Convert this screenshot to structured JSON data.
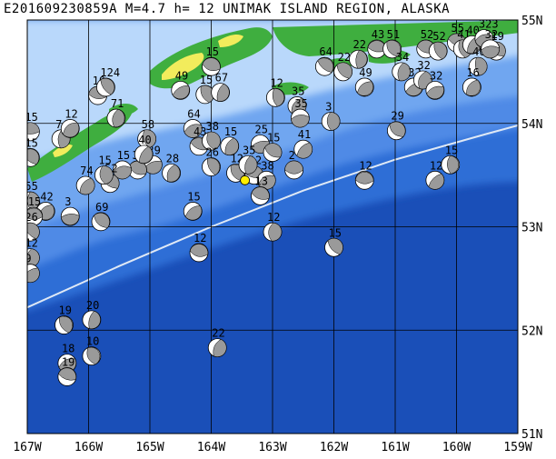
{
  "title": "E201609230859A  M=4.7  h= 12  UNIMAK ISLAND REGION, ALASKA",
  "lon_ticks": [
    {
      "value": -167,
      "label": "167W"
    },
    {
      "value": -166,
      "label": "166W"
    },
    {
      "value": -165,
      "label": "165W"
    },
    {
      "value": -164,
      "label": "164W"
    },
    {
      "value": -163,
      "label": "163W"
    },
    {
      "value": -162,
      "label": "162W"
    },
    {
      "value": -161,
      "label": "161W"
    },
    {
      "value": -160,
      "label": "160W"
    },
    {
      "value": -159,
      "label": "159W"
    }
  ],
  "lat_ticks": [
    {
      "value": 55,
      "label": "55N"
    },
    {
      "value": 54,
      "label": "54N"
    },
    {
      "value": 53,
      "label": "53N"
    },
    {
      "value": 52,
      "label": "52N"
    },
    {
      "value": 51,
      "label": "51N"
    }
  ],
  "colors": {
    "deep_ocean": "#1a4fb8",
    "ocean": "#2e6ed6",
    "shelf": "#6fa6f0",
    "shallow": "#b9d8fb",
    "land_low": "#3fae3f",
    "land_high": "#f2ec5c",
    "trench_line": "#dfe9f6",
    "epicenter": "#ffee00"
  },
  "epicenter": {
    "lon": -163.45,
    "lat": 53.45
  },
  "trench": [
    {
      "lon": -167.0,
      "lat": 52.22
    },
    {
      "lon": -165.5,
      "lat": 52.62
    },
    {
      "lon": -164.0,
      "lat": 53.0
    },
    {
      "lon": -162.5,
      "lat": 53.35
    },
    {
      "lon": -161.0,
      "lat": 53.65
    },
    {
      "lon": -159.5,
      "lat": 53.9
    },
    {
      "lon": -159.0,
      "lat": 53.98
    }
  ],
  "mechanisms": [
    {
      "lon": -166.95,
      "lat": 53.92,
      "label": "15"
    },
    {
      "lon": -166.95,
      "lat": 53.67,
      "label": "15"
    },
    {
      "lon": -166.45,
      "lat": 53.85,
      "label": "7"
    },
    {
      "lon": -166.3,
      "lat": 53.95,
      "label": "12"
    },
    {
      "lon": -165.85,
      "lat": 54.27,
      "label": "10"
    },
    {
      "lon": -165.72,
      "lat": 54.35,
      "label": "124"
    },
    {
      "lon": -165.55,
      "lat": 54.05,
      "label": "71"
    },
    {
      "lon": -164.5,
      "lat": 54.32,
      "label": "49"
    },
    {
      "lon": -164.0,
      "lat": 54.55,
      "label": "15"
    },
    {
      "lon": -164.1,
      "lat": 54.28,
      "label": "15"
    },
    {
      "lon": -163.85,
      "lat": 54.3,
      "label": "67"
    },
    {
      "lon": -164.3,
      "lat": 53.95,
      "label": "64"
    },
    {
      "lon": -164.2,
      "lat": 53.78,
      "label": "43"
    },
    {
      "lon": -164.0,
      "lat": 53.83,
      "label": "38"
    },
    {
      "lon": -163.7,
      "lat": 53.78,
      "label": "15"
    },
    {
      "lon": -163.2,
      "lat": 53.8,
      "label": "25"
    },
    {
      "lon": -163.0,
      "lat": 53.72,
      "label": "15"
    },
    {
      "lon": -162.95,
      "lat": 54.25,
      "label": "12"
    },
    {
      "lon": -162.6,
      "lat": 54.17,
      "label": "35"
    },
    {
      "lon": -162.55,
      "lat": 54.05,
      "label": "35"
    },
    {
      "lon": -162.15,
      "lat": 54.55,
      "label": "64"
    },
    {
      "lon": -162.05,
      "lat": 54.02,
      "label": "3"
    },
    {
      "lon": -162.5,
      "lat": 53.75,
      "label": "41"
    },
    {
      "lon": -162.65,
      "lat": 53.55,
      "label": "2"
    },
    {
      "lon": -161.85,
      "lat": 54.5,
      "label": "22"
    },
    {
      "lon": -161.6,
      "lat": 54.62,
      "label": "22"
    },
    {
      "lon": -161.5,
      "lat": 54.35,
      "label": "49"
    },
    {
      "lon": -161.3,
      "lat": 54.72,
      "label": "43"
    },
    {
      "lon": -161.05,
      "lat": 54.72,
      "label": "51"
    },
    {
      "lon": -160.9,
      "lat": 54.5,
      "label": "34"
    },
    {
      "lon": -160.7,
      "lat": 54.35,
      "label": "32"
    },
    {
      "lon": -160.5,
      "lat": 54.72,
      "label": "52"
    },
    {
      "lon": -160.3,
      "lat": 54.7,
      "label": "52"
    },
    {
      "lon": -160.55,
      "lat": 54.42,
      "label": "32"
    },
    {
      "lon": -160.35,
      "lat": 54.32,
      "label": "32"
    },
    {
      "lon": -160.0,
      "lat": 54.78,
      "label": "55"
    },
    {
      "lon": -159.9,
      "lat": 54.72,
      "label": "41"
    },
    {
      "lon": -159.75,
      "lat": 54.76,
      "label": "40"
    },
    {
      "lon": -159.55,
      "lat": 54.82,
      "label": "323"
    },
    {
      "lon": -159.35,
      "lat": 54.7,
      "label": "19"
    },
    {
      "lon": -159.65,
      "lat": 54.55,
      "label": "40"
    },
    {
      "lon": -159.75,
      "lat": 54.35,
      "label": "16"
    },
    {
      "lon": -159.45,
      "lat": 54.72,
      "label": "32"
    },
    {
      "lon": -160.98,
      "lat": 53.93,
      "label": "29"
    },
    {
      "lon": -160.1,
      "lat": 53.6,
      "label": "15"
    },
    {
      "lon": -160.35,
      "lat": 53.45,
      "label": "12"
    },
    {
      "lon": -161.5,
      "lat": 53.45,
      "label": "12"
    },
    {
      "lon": -162.0,
      "lat": 52.8,
      "label": "15"
    },
    {
      "lon": -163.0,
      "lat": 52.95,
      "label": "12"
    },
    {
      "lon": -164.3,
      "lat": 53.15,
      "label": "15"
    },
    {
      "lon": -163.3,
      "lat": 53.5,
      "label": "12"
    },
    {
      "lon": -163.6,
      "lat": 53.52,
      "label": "12"
    },
    {
      "lon": -163.4,
      "lat": 53.6,
      "label": "35"
    },
    {
      "lon": -163.1,
      "lat": 53.45,
      "label": "38"
    },
    {
      "lon": -163.2,
      "lat": 53.3,
      "label": "13"
    },
    {
      "lon": -164.0,
      "lat": 53.58,
      "label": "26"
    },
    {
      "lon": -164.65,
      "lat": 53.52,
      "label": "28"
    },
    {
      "lon": -164.95,
      "lat": 53.6,
      "label": "29"
    },
    {
      "lon": -165.2,
      "lat": 53.55,
      "label": "38"
    },
    {
      "lon": -165.05,
      "lat": 53.85,
      "label": "58"
    },
    {
      "lon": -165.1,
      "lat": 53.7,
      "label": "40"
    },
    {
      "lon": -165.45,
      "lat": 53.55,
      "label": "15"
    },
    {
      "lon": -165.65,
      "lat": 53.42,
      "label": "52"
    },
    {
      "lon": -165.75,
      "lat": 53.5,
      "label": "15"
    },
    {
      "lon": -166.05,
      "lat": 53.4,
      "label": "74"
    },
    {
      "lon": -166.3,
      "lat": 53.1,
      "label": "3"
    },
    {
      "lon": -165.8,
      "lat": 53.05,
      "label": "69"
    },
    {
      "lon": -166.95,
      "lat": 53.25,
      "label": "55"
    },
    {
      "lon": -166.7,
      "lat": 53.15,
      "label": "42"
    },
    {
      "lon": -166.9,
      "lat": 53.1,
      "label": "15"
    },
    {
      "lon": -166.95,
      "lat": 52.95,
      "label": "26"
    },
    {
      "lon": -166.95,
      "lat": 52.7,
      "label": "12"
    },
    {
      "lon": -166.95,
      "lat": 52.55,
      "label": "9"
    },
    {
      "lon": -164.2,
      "lat": 52.75,
      "label": "12"
    },
    {
      "lon": -166.4,
      "lat": 52.05,
      "label": "19"
    },
    {
      "lon": -165.95,
      "lat": 52.1,
      "label": "20"
    },
    {
      "lon": -166.35,
      "lat": 51.68,
      "label": "18"
    },
    {
      "lon": -166.35,
      "lat": 51.55,
      "label": "19"
    },
    {
      "lon": -165.95,
      "lat": 51.75,
      "label": "10"
    },
    {
      "lon": -163.9,
      "lat": 51.83,
      "label": "22"
    }
  ]
}
